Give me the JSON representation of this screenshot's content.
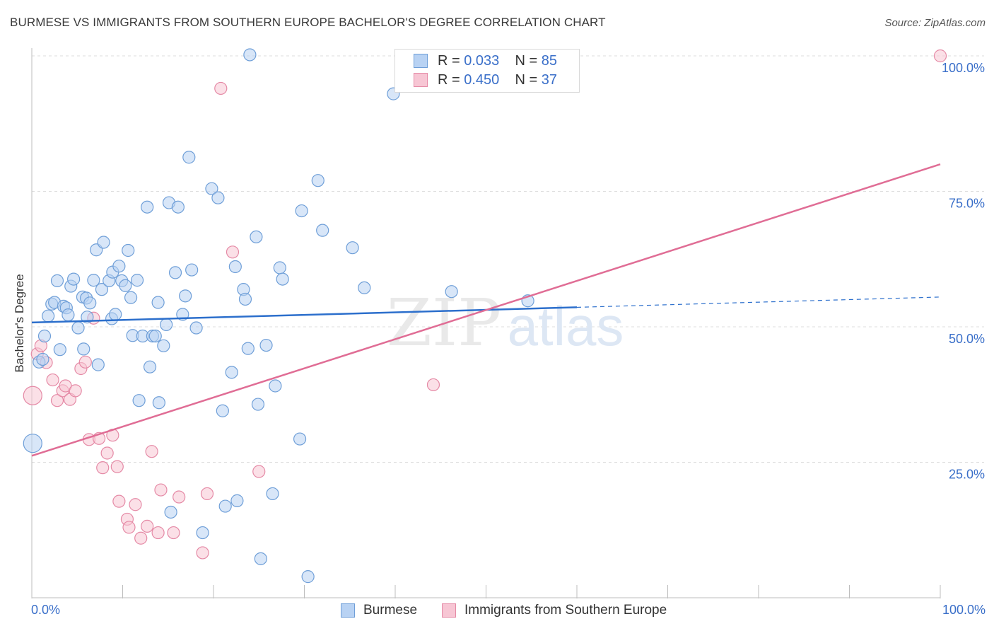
{
  "header": {
    "title": "BURMESE VS IMMIGRANTS FROM SOUTHERN EUROPE BACHELOR'S DEGREE CORRELATION CHART",
    "source": "Source: ZipAtlas.com"
  },
  "legend_top": {
    "rows": [
      {
        "r_label": "R =",
        "r_value": "0.033",
        "n_label": "N =",
        "n_value": "85"
      },
      {
        "r_label": "R =",
        "r_value": "0.450",
        "n_label": "N =",
        "n_value": "37"
      }
    ]
  },
  "legend_bottom": {
    "items": [
      {
        "label": "Burmese"
      },
      {
        "label": "Immigrants from Southern Europe"
      }
    ]
  },
  "axes": {
    "ylabel": "Bachelor's Degree",
    "x_min_label": "0.0%",
    "x_max_label": "100.0%",
    "y_tick_labels": [
      "25.0%",
      "50.0%",
      "75.0%",
      "100.0%"
    ]
  },
  "watermark": {
    "zip": "ZIP",
    "atlas": "atlas"
  },
  "colors": {
    "blue_fill": "#b8d2f3",
    "blue_stroke": "#6f9fd8",
    "blue_line": "#2c6fcc",
    "pink_fill": "#f7c6d4",
    "pink_stroke": "#e58aa6",
    "pink_line": "#e06d95",
    "tick_label": "#3a6fc9",
    "grid": "#dddddd"
  },
  "chart_data": {
    "type": "scatter",
    "title": "BURMESE VS IMMIGRANTS FROM SOUTHERN EUROPE BACHELOR'S DEGREE CORRELATION CHART",
    "xlabel": "",
    "ylabel": "Bachelor's Degree",
    "xlim": [
      0,
      100
    ],
    "ylim": [
      0,
      100
    ],
    "x_unit": "%",
    "y_unit": "%",
    "y_ticks": [
      25,
      50,
      75,
      100
    ],
    "grid": true,
    "legend_position": "top-center",
    "series": [
      {
        "name": "Burmese",
        "color": "#6f9fd8",
        "R": 0.033,
        "N": 85,
        "trend": {
          "x": [
            0,
            60
          ],
          "y": [
            50.8,
            53.6
          ],
          "dashed_extension_to_x": 100,
          "dashed_end_y": 55.5
        },
        "points": [
          [
            0.1,
            28.5,
            "large"
          ],
          [
            0.8,
            43.5
          ],
          [
            1.4,
            48.3
          ],
          [
            1.8,
            52.0
          ],
          [
            2.2,
            54.2
          ],
          [
            2.5,
            54.5
          ],
          [
            2.8,
            58.5
          ],
          [
            3.1,
            45.8
          ],
          [
            3.5,
            53.8
          ],
          [
            3.8,
            53.5
          ],
          [
            4.0,
            52.2
          ],
          [
            4.3,
            57.5
          ],
          [
            4.6,
            58.8
          ],
          [
            5.1,
            49.8
          ],
          [
            5.6,
            55.5
          ],
          [
            5.7,
            45.9
          ],
          [
            6.0,
            55.3
          ],
          [
            6.1,
            51.8
          ],
          [
            6.4,
            54.4
          ],
          [
            6.8,
            58.6
          ],
          [
            7.1,
            64.2
          ],
          [
            7.3,
            43.0
          ],
          [
            7.7,
            56.9
          ],
          [
            7.9,
            65.6
          ],
          [
            8.5,
            58.5
          ],
          [
            8.8,
            51.5
          ],
          [
            8.9,
            60.1
          ],
          [
            9.2,
            52.3
          ],
          [
            9.6,
            61.2
          ],
          [
            9.9,
            58.5
          ],
          [
            10.3,
            57.6
          ],
          [
            10.6,
            64.1
          ],
          [
            10.9,
            55.4
          ],
          [
            11.1,
            48.4
          ],
          [
            11.6,
            58.6
          ],
          [
            11.8,
            36.4
          ],
          [
            12.2,
            48.3
          ],
          [
            12.7,
            72.1
          ],
          [
            13.0,
            42.6
          ],
          [
            13.3,
            48.3
          ],
          [
            13.6,
            48.3
          ],
          [
            13.9,
            54.5
          ],
          [
            14.0,
            36.0
          ],
          [
            14.5,
            46.5
          ],
          [
            14.8,
            50.4
          ],
          [
            15.1,
            72.9
          ],
          [
            15.3,
            15.8
          ],
          [
            15.8,
            60.0
          ],
          [
            16.1,
            72.1
          ],
          [
            16.6,
            52.3
          ],
          [
            16.9,
            55.7
          ],
          [
            17.3,
            81.3
          ],
          [
            17.6,
            60.5
          ],
          [
            18.1,
            49.8
          ],
          [
            18.8,
            12.0
          ],
          [
            19.8,
            75.5
          ],
          [
            20.5,
            73.8
          ],
          [
            21.0,
            34.5
          ],
          [
            21.3,
            16.9
          ],
          [
            22.0,
            41.6
          ],
          [
            22.6,
            17.9
          ],
          [
            22.4,
            61.1
          ],
          [
            23.3,
            56.9
          ],
          [
            23.5,
            55.1
          ],
          [
            23.8,
            46.0
          ],
          [
            24.0,
            100.2
          ],
          [
            24.7,
            66.6
          ],
          [
            24.9,
            35.7
          ],
          [
            25.2,
            7.2
          ],
          [
            25.8,
            46.6
          ],
          [
            26.5,
            19.2
          ],
          [
            26.8,
            39.1
          ],
          [
            27.3,
            60.9
          ],
          [
            27.6,
            58.8
          ],
          [
            29.5,
            29.3
          ],
          [
            29.7,
            71.4
          ],
          [
            30.4,
            3.9
          ],
          [
            31.5,
            77.0
          ],
          [
            32.0,
            67.8
          ],
          [
            35.3,
            64.6
          ],
          [
            36.6,
            57.2
          ],
          [
            39.8,
            93.0
          ],
          [
            46.2,
            56.5
          ],
          [
            54.6,
            54.8
          ],
          [
            1.2,
            44.0
          ]
        ]
      },
      {
        "name": "Immigrants from Southern Europe",
        "color": "#e58aa6",
        "R": 0.45,
        "N": 37,
        "trend": {
          "x": [
            0,
            100
          ],
          "y": [
            26.2,
            80.0
          ]
        },
        "points": [
          [
            0.1,
            37.3,
            "large"
          ],
          [
            0.6,
            45.0
          ],
          [
            1.0,
            46.5
          ],
          [
            1.6,
            43.4
          ],
          [
            2.3,
            40.2
          ],
          [
            2.8,
            36.4
          ],
          [
            3.4,
            38.2
          ],
          [
            3.7,
            39.1
          ],
          [
            4.2,
            36.6
          ],
          [
            4.8,
            38.2
          ],
          [
            5.4,
            42.3
          ],
          [
            5.9,
            43.5
          ],
          [
            6.3,
            29.2
          ],
          [
            6.8,
            51.6
          ],
          [
            7.4,
            29.4
          ],
          [
            7.8,
            24.0
          ],
          [
            8.3,
            26.7
          ],
          [
            8.9,
            30.0
          ],
          [
            9.4,
            24.2
          ],
          [
            9.6,
            17.8
          ],
          [
            10.5,
            14.5
          ],
          [
            10.7,
            13.0
          ],
          [
            11.4,
            17.2
          ],
          [
            12.0,
            11.0
          ],
          [
            12.7,
            13.2
          ],
          [
            13.2,
            27.0
          ],
          [
            13.9,
            12.0
          ],
          [
            14.2,
            19.9
          ],
          [
            15.6,
            12.0
          ],
          [
            16.2,
            18.6
          ],
          [
            18.8,
            8.3
          ],
          [
            19.3,
            19.2
          ],
          [
            20.8,
            94.0
          ],
          [
            22.1,
            63.8
          ],
          [
            25.0,
            23.3
          ],
          [
            44.2,
            39.3
          ],
          [
            100.0,
            100.0
          ]
        ]
      }
    ]
  }
}
